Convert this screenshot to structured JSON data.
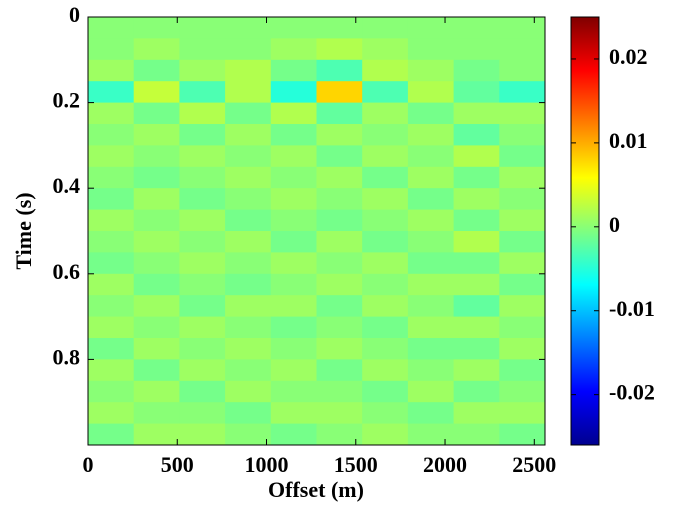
{
  "chart_data": {
    "type": "heatmap",
    "x_label": "Offset (m)",
    "y_label": "Time (s)",
    "x": [
      128,
      384,
      640,
      896,
      1152,
      1408,
      1664,
      1920,
      2176,
      2432
    ],
    "y": [
      0.025,
      0.075,
      0.125,
      0.175,
      0.225,
      0.275,
      0.325,
      0.375,
      0.425,
      0.475,
      0.525,
      0.575,
      0.625,
      0.675,
      0.725,
      0.775,
      0.825,
      0.875,
      0.925,
      0.975
    ],
    "z": [
      [
        0,
        0,
        0,
        0,
        0,
        0,
        0,
        0,
        0,
        0
      ],
      [
        0,
        0.001,
        0,
        0,
        0.001,
        0.002,
        0.001,
        0,
        0,
        0
      ],
      [
        0.001,
        -0.001,
        0.001,
        0.002,
        -0.001,
        -0.003,
        0.002,
        0.001,
        -0.001,
        0
      ],
      [
        -0.004,
        0.003,
        -0.003,
        0.002,
        -0.005,
        0.008,
        -0.003,
        0.002,
        -0.002,
        -0.004
      ],
      [
        0.001,
        -0.001,
        0.002,
        -0.001,
        0.002,
        -0.002,
        0.001,
        -0.001,
        0.001,
        0.001
      ],
      [
        0,
        0.001,
        -0.001,
        0.001,
        -0.001,
        0.001,
        0,
        0.001,
        -0.002,
        0
      ],
      [
        0.001,
        0,
        0.001,
        0,
        0.001,
        -0.001,
        0.001,
        0,
        0.002,
        -0.001
      ],
      [
        0,
        -0.001,
        0,
        0.001,
        0,
        0.001,
        -0.001,
        0.001,
        -0.001,
        0.001
      ],
      [
        -0.001,
        0.001,
        -0.001,
        0,
        0.001,
        0,
        0.001,
        -0.001,
        0.001,
        0
      ],
      [
        0.001,
        0,
        0.001,
        -0.001,
        0,
        -0.001,
        0,
        0.001,
        -0.001,
        0.001
      ],
      [
        0,
        0.001,
        0,
        0.001,
        -0.001,
        0.001,
        -0.001,
        0,
        0.002,
        -0.001
      ],
      [
        -0.001,
        0,
        0.001,
        0,
        0.001,
        0,
        0.001,
        -0.001,
        -0.001,
        0.001
      ],
      [
        0.001,
        -0.001,
        0,
        -0.001,
        0,
        0.001,
        0,
        0.001,
        0.001,
        -0.001
      ],
      [
        0,
        0.001,
        -0.001,
        0.001,
        0.001,
        -0.001,
        0.001,
        0,
        -0.002,
        0.001
      ],
      [
        0.001,
        0,
        0.001,
        0,
        -0.001,
        0,
        -0.001,
        0.001,
        0.001,
        0
      ],
      [
        -0.001,
        0.001,
        0,
        0.001,
        0,
        0.001,
        0,
        -0.001,
        -0.001,
        0.001
      ],
      [
        0.001,
        -0.001,
        0.001,
        0,
        0.001,
        -0.001,
        0.001,
        0,
        0.001,
        -0.001
      ],
      [
        0,
        0.001,
        -0.001,
        0.001,
        0,
        0,
        -0.001,
        0.001,
        -0.001,
        0
      ],
      [
        0.001,
        0,
        0,
        -0.001,
        0.001,
        0.001,
        0,
        -0.001,
        0.001,
        0.001
      ],
      [
        -0.001,
        0.001,
        0.001,
        0,
        -0.001,
        0,
        0.001,
        0,
        0,
        -0.001
      ]
    ],
    "xlim": [
      0,
      2560
    ],
    "ylim": [
      1,
      0
    ],
    "xticks": [
      0,
      500,
      1000,
      1500,
      2000,
      2500
    ],
    "yticks": [
      0,
      0.2,
      0.4,
      0.6,
      0.8
    ],
    "colormap": "jet",
    "clim": [
      -0.026,
      0.025
    ],
    "colorbar_ticks": [
      -0.02,
      -0.01,
      0,
      0.01,
      0.02
    ]
  }
}
